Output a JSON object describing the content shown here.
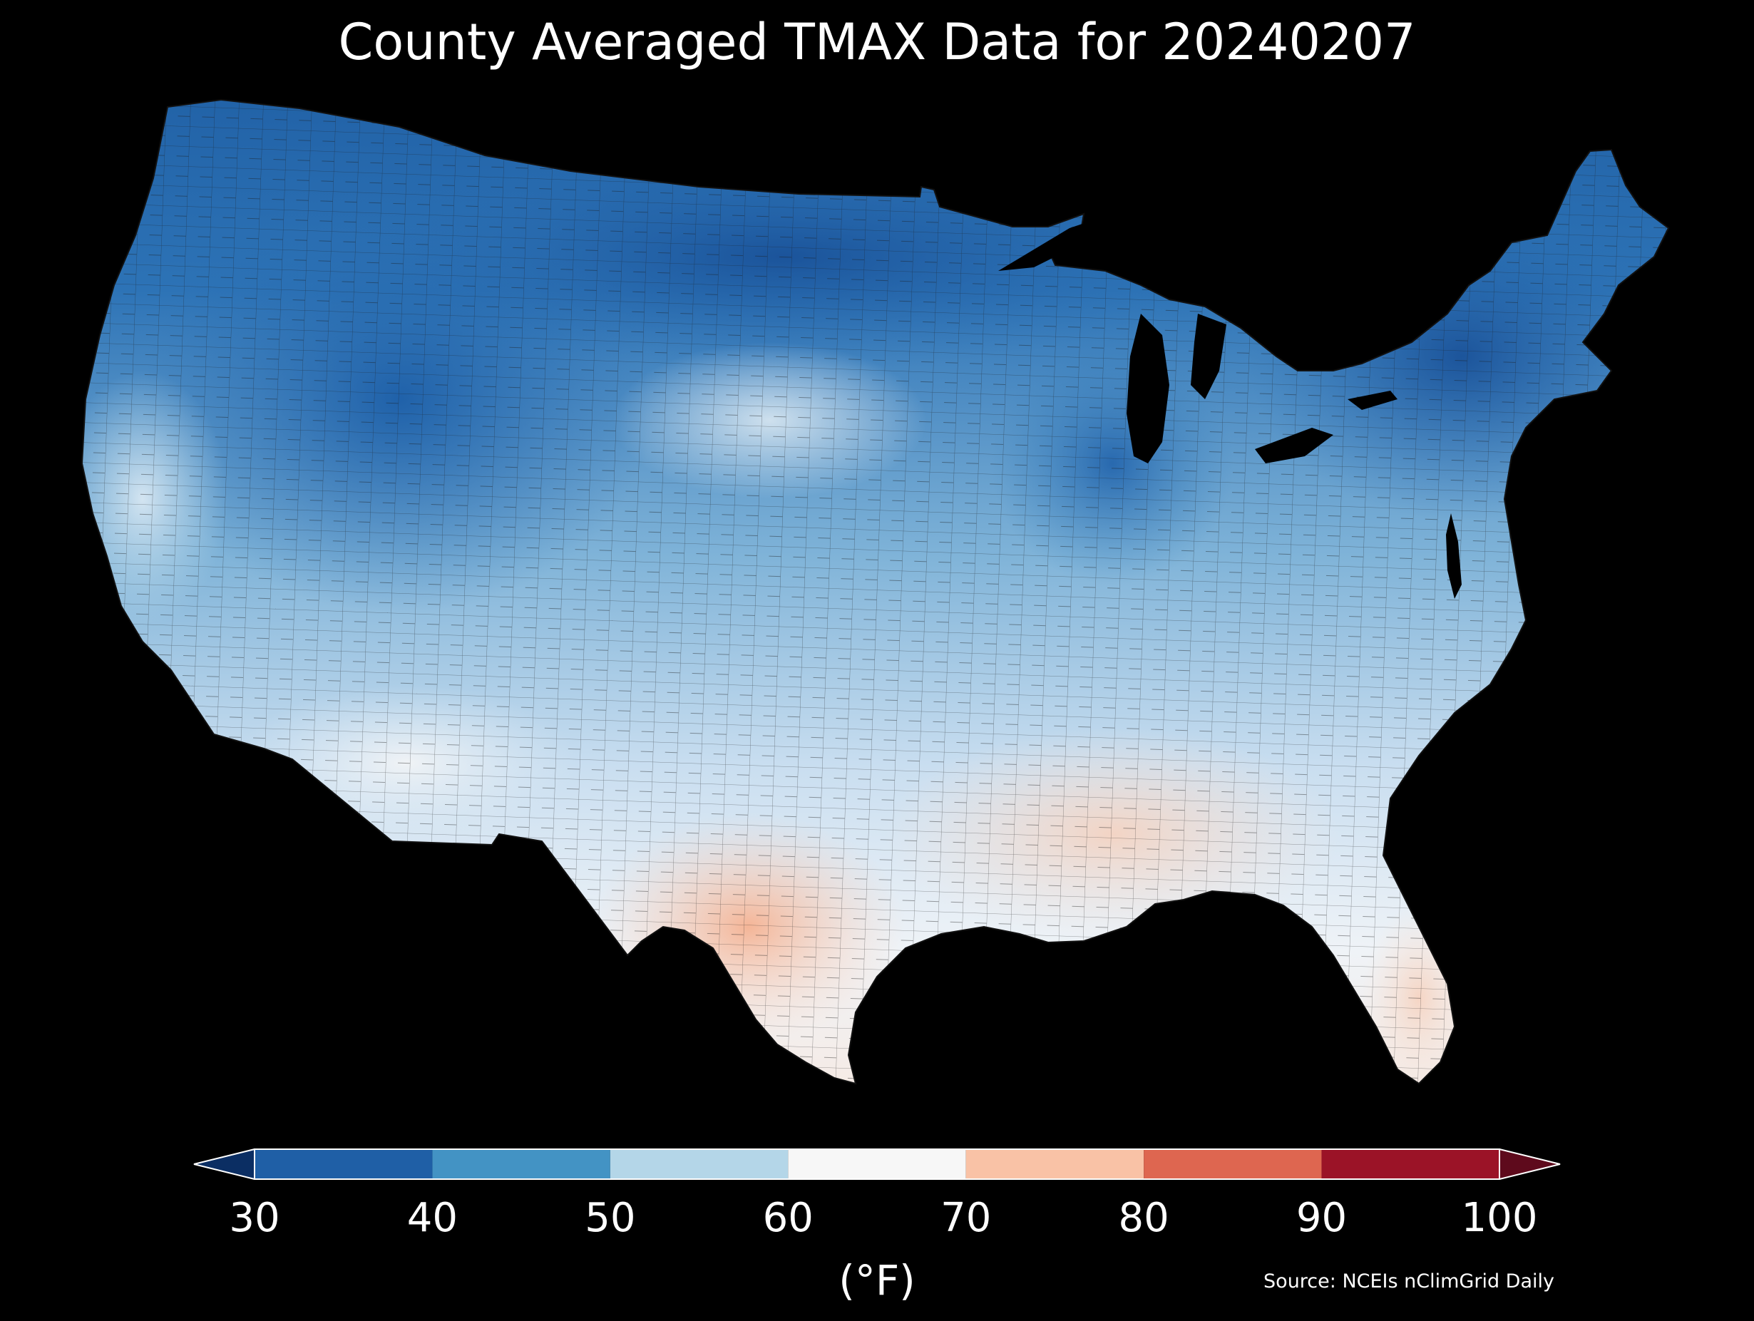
{
  "title": "County Averaged TMAX Data for 20240207",
  "source": "Source: NCEIs nClimGrid Daily",
  "colorbar": {
    "unit_label": "(°F)",
    "ticks": [
      "30",
      "40",
      "50",
      "60",
      "70",
      "80",
      "90",
      "100"
    ],
    "bins": [
      {
        "from": 30,
        "to": 40,
        "color": "#1f5fa6"
      },
      {
        "from": 40,
        "to": 50,
        "color": "#4393c4"
      },
      {
        "from": 50,
        "to": 60,
        "color": "#b4d6e8"
      },
      {
        "from": 60,
        "to": 70,
        "color": "#f7f7f7"
      },
      {
        "from": 70,
        "to": 80,
        "color": "#f9c2a6"
      },
      {
        "from": 80,
        "to": 90,
        "color": "#de6650"
      },
      {
        "from": 90,
        "to": 100,
        "color": "#9b1327"
      }
    ],
    "under_color": "#0b2e63",
    "over_color": "#5e0a1c",
    "extend": "both"
  },
  "map": {
    "region": "Contiguous United States",
    "units": "counties",
    "background_color": "#000000",
    "boundary_color": "#1a1a1a"
  }
}
